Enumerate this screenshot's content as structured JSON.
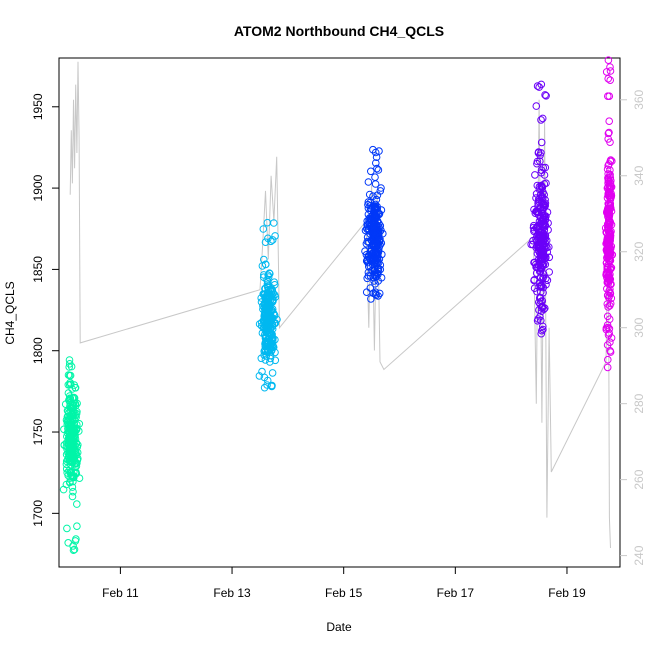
{
  "chart_data": {
    "type": "scatter",
    "title": "ATOM2 Northbound CH4_QCLS",
    "xlabel": "Date",
    "ylabel": "CH4_QCLS",
    "x_range_days": [
      9.9,
      19.95
    ],
    "ylim": [
      1667,
      1980
    ],
    "y2lim": [
      237,
      371
    ],
    "x_ticks": [
      {
        "label": "Feb 11",
        "value": 11
      },
      {
        "label": "Feb 13",
        "value": 13
      },
      {
        "label": "Feb 15",
        "value": 15
      },
      {
        "label": "Feb 17",
        "value": 17
      },
      {
        "label": "Feb 19",
        "value": 19
      }
    ],
    "y_ticks": [
      1700,
      1750,
      1800,
      1850,
      1900,
      1950
    ],
    "y2_ticks": [
      240,
      260,
      280,
      300,
      320,
      340,
      360
    ],
    "grid": false,
    "background_line": {
      "name": "",
      "color": "#c8c8c8",
      "axis": "right",
      "points": [
        [
          10.1,
          335
        ],
        [
          10.12,
          352
        ],
        [
          10.14,
          338
        ],
        [
          10.16,
          360
        ],
        [
          10.18,
          342
        ],
        [
          10.2,
          364
        ],
        [
          10.22,
          346
        ],
        [
          10.24,
          370
        ],
        [
          10.26,
          350
        ],
        [
          10.28,
          296
        ],
        [
          13.5,
          310
        ],
        [
          13.55,
          322
        ],
        [
          13.6,
          336
        ],
        [
          13.65,
          318
        ],
        [
          13.7,
          340
        ],
        [
          13.75,
          328
        ],
        [
          13.8,
          345
        ],
        [
          13.85,
          300
        ],
        [
          15.4,
          328
        ],
        [
          15.45,
          300
        ],
        [
          15.5,
          338
        ],
        [
          15.55,
          294
        ],
        [
          15.6,
          336
        ],
        [
          15.65,
          291
        ],
        [
          15.72,
          289
        ],
        [
          18.4,
          324
        ],
        [
          18.45,
          280
        ],
        [
          18.5,
          360
        ],
        [
          18.55,
          275
        ],
        [
          18.6,
          355
        ],
        [
          18.64,
          250
        ],
        [
          18.68,
          300
        ],
        [
          18.72,
          262
        ],
        [
          19.7,
          291
        ],
        [
          19.74,
          330
        ],
        [
          19.76,
          250
        ],
        [
          19.78,
          242
        ]
      ]
    },
    "series": [
      {
        "name": "",
        "color": "#00f5a8",
        "date_from": "Feb 10",
        "date_to": "Feb 10",
        "x_range": [
          9.95,
          10.3
        ],
        "y_range": [
          1675,
          1795
        ],
        "center": 1745
      },
      {
        "name": "",
        "color": "#00b8f0",
        "date_from": "Feb 13",
        "date_to": "Feb 13",
        "x_range": [
          13.45,
          13.85
        ],
        "y_range": [
          1777,
          1882
        ],
        "center": 1820
      },
      {
        "name": "",
        "color": "#0038f8",
        "date_from": "Feb 15",
        "date_to": "Feb 15",
        "x_range": [
          15.35,
          15.75
        ],
        "y_range": [
          1827,
          1925
        ],
        "center": 1868
      },
      {
        "name": "",
        "color": "#6a00f8",
        "date_from": "Feb 18",
        "date_to": "Feb 18",
        "x_range": [
          18.35,
          18.72
        ],
        "y_range": [
          1805,
          1966
        ],
        "center": 1870
      },
      {
        "name": "",
        "color": "#e000f0",
        "date_from": "Feb 19",
        "date_to": "Feb 19",
        "x_range": [
          19.68,
          19.82
        ],
        "y_range": [
          1786,
          1980
        ],
        "center": 1870
      }
    ]
  }
}
